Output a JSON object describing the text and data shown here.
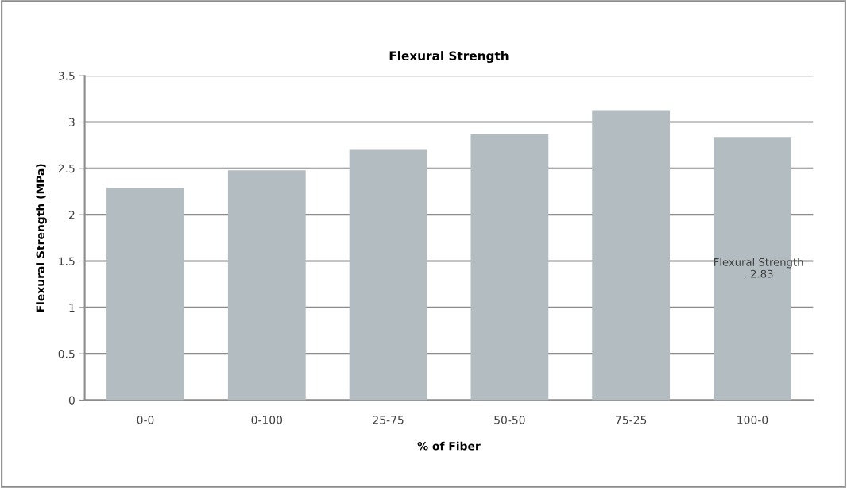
{
  "chart_data": {
    "type": "bar",
    "title": "Flexural Strength",
    "xlabel": "% of Fiber",
    "ylabel": "Flexural Strength (MPa)",
    "categories": [
      "0-0",
      "0-100",
      "25-75",
      "50-50",
      "75-25",
      "100-0"
    ],
    "values": [
      2.29,
      2.48,
      2.7,
      2.87,
      3.12,
      2.83
    ],
    "value_labels": [
      null,
      null,
      null,
      null,
      null,
      "Flexural Strength\n, 2.83"
    ],
    "color": "#b2bcc1",
    "ylim": [
      0,
      3.5
    ],
    "yticks": [
      0,
      0.5,
      1,
      1.5,
      2,
      2.5,
      3,
      3.5
    ],
    "grid": "y",
    "legend": false
  }
}
